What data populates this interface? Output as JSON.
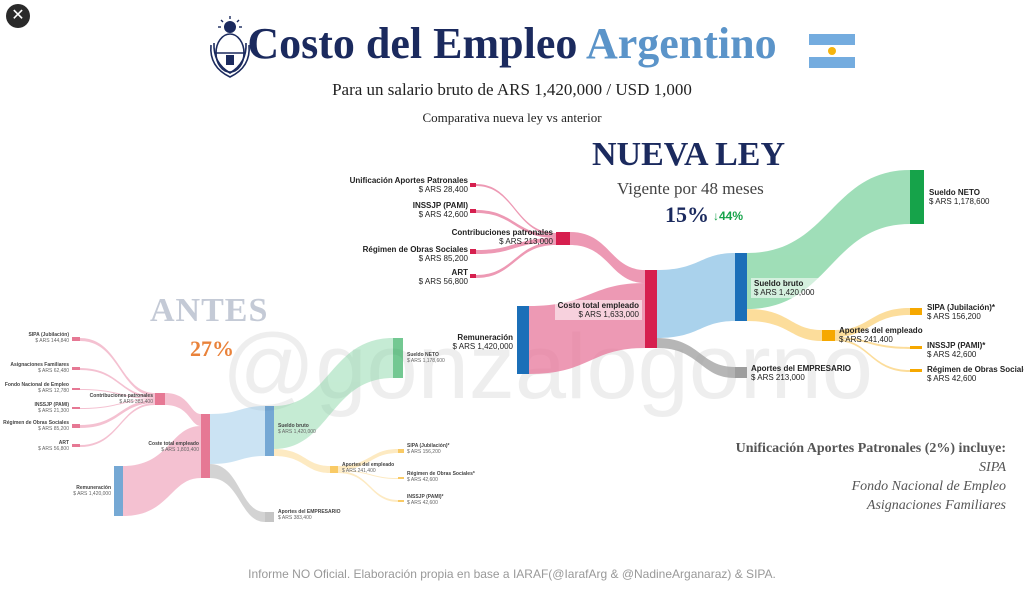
{
  "header": {
    "title_main": "Costo del Empleo",
    "title_accent": "Argentino",
    "subtitle": "Para un salario bruto de ARS 1,420,000 / USD 1,000",
    "subtitle2": "Comparativa nueva ley vs anterior",
    "flag_icon": "argentina-flag-icon",
    "seal_icon": "argentina-seal-icon"
  },
  "nueva": {
    "title": "NUEVA LEY",
    "vigencia": "Vigente por 48 meses",
    "percent": "15%",
    "delta": "↓44%",
    "nodes": {
      "unificacion": {
        "name": "Unificación Aportes Patronales",
        "value": "$ ARS 28,400"
      },
      "inssjp": {
        "name": "INSSJP (PAMI)",
        "value": "$ ARS 42,600"
      },
      "contrib": {
        "name": "Contribuciones patronales",
        "value": "$ ARS 213,000"
      },
      "obras": {
        "name": "Régimen de Obras Sociales",
        "value": "$ ARS 85,200"
      },
      "art": {
        "name": "ART",
        "value": "$ ARS 56,800"
      },
      "remuneracion": {
        "name": "Remuneración",
        "value": "$ ARS 1,420,000"
      },
      "costo": {
        "name": "Costo total empleado",
        "value": "$ ARS 1,633,000"
      },
      "sueldo_bruto": {
        "name": "Sueldo bruto",
        "value": "$ ARS 1,420,000"
      },
      "sueldo_neto": {
        "name": "Sueldo NETO",
        "value": "$ ARS 1,178,600"
      },
      "aportes_emp": {
        "name": "Aportes del empleado",
        "value": "$ ARS 241,400"
      },
      "sipa": {
        "name": "SIPA (Jubilación)*",
        "value": "$ ARS 156,200"
      },
      "inssjp2": {
        "name": "INSSJP (PAMI)*",
        "value": "$ ARS 42,600"
      },
      "obras2": {
        "name": "Régimen de Obras Sociales",
        "value": "$ ARS 42,600"
      },
      "aportes_empresario": {
        "name": "Aportes del EMPRESARIO",
        "value": "$ ARS 213,000"
      }
    }
  },
  "antes": {
    "title": "ANTES",
    "percent": "27%",
    "nodes": {
      "sipa": {
        "name": "SIPA (Jubilación)",
        "value": "$ ARS 144,840"
      },
      "asign": {
        "name": "Asignaciones Familiares",
        "value": "$ ARS 62,480"
      },
      "fondo": {
        "name": "Fondo Nacional de Empleo",
        "value": "$ ARS 12,780"
      },
      "contrib": {
        "name": "Contribuciones patronales",
        "value": "$ ARS 383,400"
      },
      "inssjp": {
        "name": "INSSJP (PAMI)",
        "value": "$ ARS 21,300"
      },
      "obras": {
        "name": "Régimen de Obras Sociales",
        "value": "$ ARS 85,200"
      },
      "art": {
        "name": "ART",
        "value": "$ ARS 56,800"
      },
      "costo": {
        "name": "Coste total empleado",
        "value": "$ ARS 1,803,400"
      },
      "remuneracion": {
        "name": "Remuneración",
        "value": "$ ARS 1,420,000"
      },
      "sueldo_bruto": {
        "name": "Sueldo bruto",
        "value": "$ ARS 1,420,000"
      },
      "sueldo_neto": {
        "name": "Sueldo NETO",
        "value": "$ ARS 1,178,600"
      },
      "aportes_emp": {
        "name": "Aportes del empleado",
        "value": "$ ARS 241,400"
      },
      "sipa2": {
        "name": "SIPA (Jubilación)*",
        "value": "$ ARS 156,200"
      },
      "obras2": {
        "name": "Régimen de Obras Sociales*",
        "value": "$ ARS 42,600"
      },
      "inssjp2": {
        "name": "INSSJP (PAMI)*",
        "value": "$ ARS 42,600"
      },
      "aportes_empresario": {
        "name": "Aportes del EMPRESARIO",
        "value": "$ ARS 383,400"
      }
    }
  },
  "watermark": "@gonzalogorno",
  "note": {
    "title": "Unificación Aportes Patronales (2%) incluye:",
    "items": [
      "SIPA",
      "Fondo Nacional de Empleo",
      "Asignaciones Familiares"
    ]
  },
  "footer": "Informe NO Oficial. Elaboración propia en base a IARAF(@IarafArg & @NadineArganaraz) & SIPA.",
  "colors": {
    "pink": "#e8779b",
    "red": "#d61f4e",
    "blue": "#1b6fb8",
    "lightblue": "#8ec3e6",
    "green": "#16a34a",
    "lightgreen": "#7fd3a0",
    "orange": "#f6a800",
    "lightorange": "#fbd27a",
    "gray": "#9e9e9e",
    "navy": "#1b2a5e",
    "accent": "#5b94c9",
    "antes_pct": "#e9823a",
    "delta": "#16a34a"
  }
}
